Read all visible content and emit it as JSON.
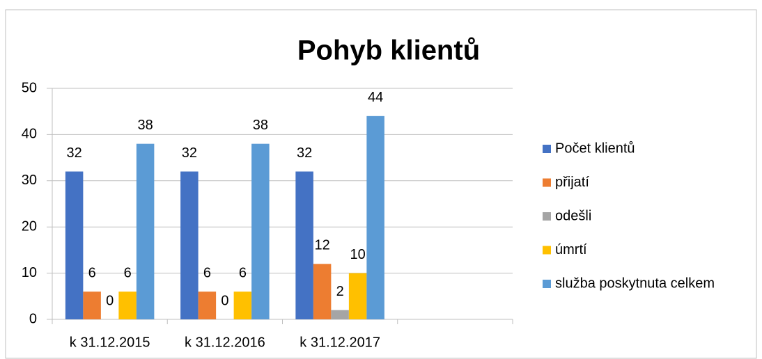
{
  "chart_data": {
    "type": "bar",
    "title": "Pohyb klientů",
    "categories": [
      "k 31.12.2015",
      "k 31.12.2016",
      "k 31.12.2017",
      null
    ],
    "series": [
      {
        "name": "Počet klientů",
        "color": "#4472c4",
        "values": [
          32,
          32,
          32,
          null
        ]
      },
      {
        "name": "přijatí",
        "color": "#ed7d31",
        "values": [
          6,
          6,
          12,
          null
        ]
      },
      {
        "name": "odešli",
        "color": "#a5a5a5",
        "values": [
          0,
          0,
          2,
          null
        ]
      },
      {
        "name": "úmrtí",
        "color": "#ffc000",
        "values": [
          6,
          6,
          10,
          null
        ]
      },
      {
        "name": "služba poskytnuta celkem",
        "color": "#5b9bd5",
        "values": [
          38,
          38,
          44,
          null
        ]
      }
    ],
    "ylim": [
      0,
      50
    ],
    "yticks": [
      0,
      10,
      20,
      30,
      40,
      50
    ],
    "grid": true,
    "legend": "right"
  }
}
